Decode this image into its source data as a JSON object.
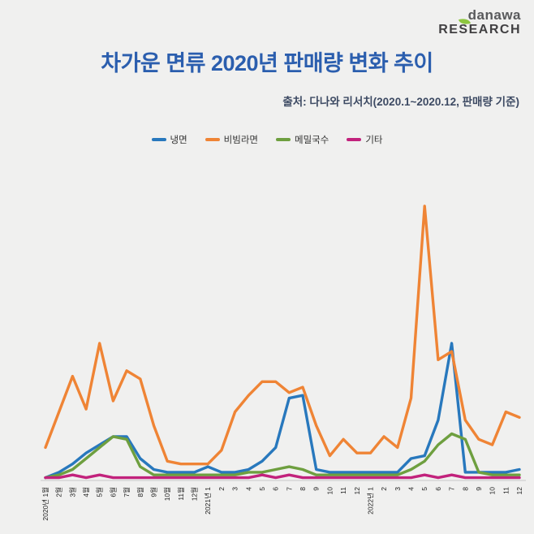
{
  "logo": {
    "name": "danawa",
    "sub": "RESEARCH"
  },
  "header": {
    "title": "차가운 면류 2020년 판매량 변화 추이",
    "source": "출처: 다나와 리서치(2020.1~2020.12, 판매량 기준)"
  },
  "colors": {
    "title_blue": "#2B5EAE",
    "source_navy": "#3D4A63",
    "logo_green": "#8DC63F",
    "background": "#F0F0EF",
    "axis_gray": "#C9C9C9"
  },
  "chart_data": {
    "type": "line",
    "title": "차가운 면류 2020년 판매량 변화 추이",
    "xlabel": "",
    "ylabel": "",
    "ylim": [
      0,
      100
    ],
    "grid": false,
    "legend_position": "top",
    "x": [
      "2020년 1월",
      "2월",
      "3월",
      "4월",
      "5월",
      "6월",
      "7월",
      "8월",
      "9월",
      "10월",
      "11월",
      "12월",
      "2021년 1",
      "2",
      "3",
      "4",
      "5",
      "6",
      "7",
      "8",
      "9",
      "10",
      "11",
      "12",
      "2022년 1",
      "2",
      "3",
      "4",
      "5",
      "6",
      "7",
      "8",
      "9",
      "10",
      "11",
      "12"
    ],
    "series": [
      {
        "name": "냉면",
        "color": "#2878BD",
        "values": [
          1,
          3,
          6,
          10,
          13,
          16,
          16,
          8,
          4,
          3,
          3,
          3,
          5,
          3,
          3,
          4,
          7,
          12,
          30,
          31,
          4,
          3,
          3,
          3,
          3,
          3,
          3,
          8,
          9,
          22,
          50,
          3,
          3,
          3,
          3,
          4
        ]
      },
      {
        "name": "비빔라면",
        "color": "#EF8435",
        "values": [
          12,
          25,
          38,
          26,
          50,
          29,
          40,
          37,
          20,
          7,
          6,
          6,
          6,
          11,
          25,
          31,
          36,
          36,
          32,
          34,
          20,
          9,
          15,
          10,
          10,
          16,
          12,
          30,
          100,
          44,
          47,
          22,
          15,
          13,
          25,
          23
        ]
      },
      {
        "name": "메밀국수",
        "color": "#6E9F3F",
        "values": [
          1,
          2,
          4,
          8,
          12,
          16,
          15,
          5,
          2,
          2,
          2,
          2,
          2,
          2,
          2,
          3,
          3,
          4,
          5,
          4,
          2,
          2,
          2,
          2,
          2,
          2,
          2,
          4,
          7,
          13,
          17,
          15,
          3,
          2,
          2,
          2
        ]
      },
      {
        "name": "기타",
        "color": "#C2227C",
        "values": [
          1,
          1,
          2,
          1,
          2,
          1,
          1,
          1,
          1,
          1,
          1,
          1,
          1,
          1,
          1,
          1,
          2,
          1,
          2,
          1,
          1,
          1,
          1,
          1,
          1,
          1,
          1,
          1,
          2,
          1,
          2,
          1,
          1,
          1,
          1,
          1
        ]
      }
    ]
  }
}
